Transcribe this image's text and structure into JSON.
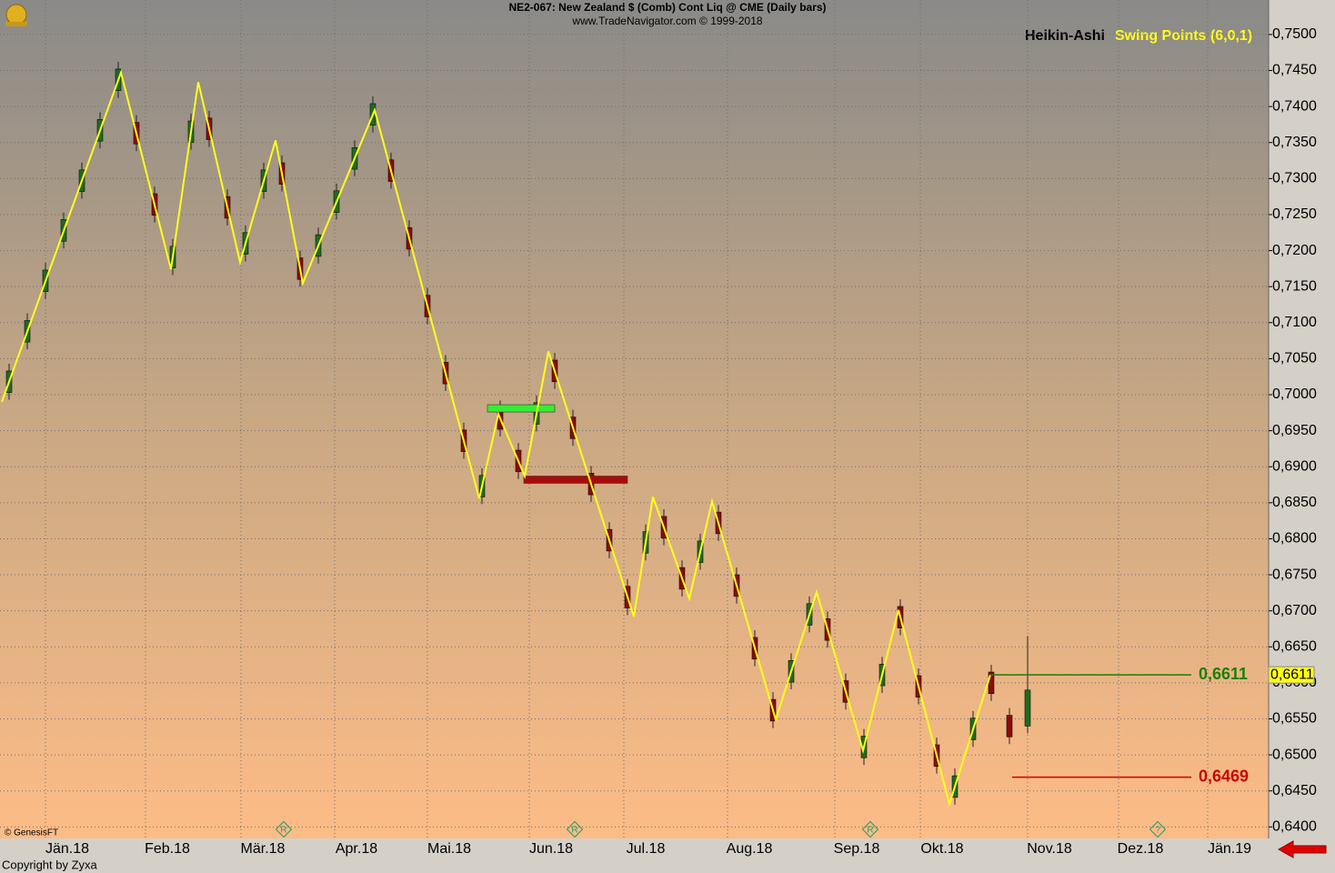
{
  "chart_data": {
    "type": "candlestick",
    "title": "NE2-067:  New Zealand $ (Comb) Cont Liq @ CME  (Daily bars)",
    "subtitle": "www.TradeNavigator.com © 1999-2018",
    "study_label": "Heikin-Ashi",
    "swing_label": "Swing Points (6,0,1)",
    "source_note": "© GenesisFT",
    "copyright": "Copyright by Zyxa",
    "up_color": "#1e6b1e",
    "down_color": "#8b0a0a",
    "swing_color": "#ffff1a",
    "grid": true,
    "xlim": [
      0,
      279
    ],
    "ylim": [
      0.6384,
      0.751
    ],
    "xticks": [
      {
        "value": 10,
        "label": "Jän.18"
      },
      {
        "value": 32,
        "label": "Feb.18"
      },
      {
        "value": 53,
        "label": "Mär.18"
      },
      {
        "value": 73.6,
        "label": "Apr.18"
      },
      {
        "value": 94,
        "label": "Mai.18"
      },
      {
        "value": 116.4,
        "label": "Jun.18"
      },
      {
        "value": 137.2,
        "label": "Jul.18"
      },
      {
        "value": 160,
        "label": "Aug.18"
      },
      {
        "value": 183.6,
        "label": "Sep.18"
      },
      {
        "value": 202.4,
        "label": "Okt.18"
      },
      {
        "value": 226,
        "label": "Nov.18"
      },
      {
        "value": 246,
        "label": "Dez.18"
      },
      {
        "value": 265.6,
        "label": "Jän.19"
      }
    ],
    "yticks": [
      {
        "value": 0.64,
        "label": "0,6400"
      },
      {
        "value": 0.645,
        "label": "0,6450"
      },
      {
        "value": 0.65,
        "label": "0,6500"
      },
      {
        "value": 0.655,
        "label": "0,6550"
      },
      {
        "value": 0.66,
        "label": "0,6600"
      },
      {
        "value": 0.665,
        "label": "0,6650"
      },
      {
        "value": 0.67,
        "label": "0,6700"
      },
      {
        "value": 0.675,
        "label": "0,6750"
      },
      {
        "value": 0.68,
        "label": "0,6800"
      },
      {
        "value": 0.685,
        "label": "0,6850"
      },
      {
        "value": 0.69,
        "label": "0,6900"
      },
      {
        "value": 0.695,
        "label": "0,6950"
      },
      {
        "value": 0.7,
        "label": "0,7000"
      },
      {
        "value": 0.705,
        "label": "0,7050"
      },
      {
        "value": 0.71,
        "label": "0,7100"
      },
      {
        "value": 0.715,
        "label": "0,7150"
      },
      {
        "value": 0.72,
        "label": "0,7200"
      },
      {
        "value": 0.725,
        "label": "0,7250"
      },
      {
        "value": 0.73,
        "label": "0,7300"
      },
      {
        "value": 0.735,
        "label": "0,7350"
      },
      {
        "value": 0.74,
        "label": "0,7400"
      },
      {
        "value": 0.745,
        "label": "0,7450"
      },
      {
        "value": 0.75,
        "label": "0,7500"
      }
    ],
    "candles": {
      "x": [
        2,
        6,
        10,
        14,
        18,
        22,
        26,
        30,
        34,
        38,
        42,
        46,
        50,
        54,
        58,
        62,
        66,
        70,
        74,
        78,
        82,
        86,
        90,
        94,
        98,
        102,
        106,
        110,
        114,
        118,
        122,
        126,
        130,
        134,
        138,
        142,
        146,
        150,
        154,
        158,
        162,
        166,
        170,
        174,
        178,
        182,
        186,
        190,
        194,
        198,
        202,
        206,
        210,
        214,
        218,
        222,
        226
      ],
      "open": [
        0.7003,
        0.7073,
        0.7143,
        0.7213,
        0.7282,
        0.7352,
        0.7422,
        0.7378,
        0.7279,
        0.7176,
        0.735,
        0.7384,
        0.7275,
        0.7195,
        0.7282,
        0.7322,
        0.719,
        0.7192,
        0.7253,
        0.7313,
        0.7374,
        0.7326,
        0.7232,
        0.7138,
        0.7045,
        0.6951,
        0.6858,
        0.6982,
        0.6923,
        0.6959,
        0.7048,
        0.6969,
        0.6891,
        0.6813,
        0.6734,
        0.678,
        0.6831,
        0.676,
        0.6767,
        0.6837,
        0.675,
        0.6663,
        0.6577,
        0.6601,
        0.668,
        0.6689,
        0.6603,
        0.6496,
        0.6596,
        0.6706,
        0.661,
        0.6514,
        0.6441,
        0.6521,
        0.6615,
        0.6555,
        0.654
      ],
      "high": [
        0.7043,
        0.7113,
        0.7183,
        0.7253,
        0.7322,
        0.7392,
        0.7462,
        0.7388,
        0.7289,
        0.7216,
        0.739,
        0.7394,
        0.7285,
        0.7235,
        0.7322,
        0.7332,
        0.72,
        0.7232,
        0.7293,
        0.7353,
        0.7414,
        0.7336,
        0.7242,
        0.7148,
        0.7055,
        0.6961,
        0.6898,
        0.6992,
        0.6933,
        0.6999,
        0.7058,
        0.6979,
        0.6901,
        0.6823,
        0.6744,
        0.682,
        0.6841,
        0.677,
        0.6807,
        0.6847,
        0.676,
        0.6673,
        0.6587,
        0.6641,
        0.672,
        0.6699,
        0.6613,
        0.6536,
        0.6636,
        0.6716,
        0.662,
        0.6524,
        0.6481,
        0.6561,
        0.6625,
        0.6565,
        0.6665
      ],
      "low": [
        0.6993,
        0.7063,
        0.7133,
        0.7203,
        0.7272,
        0.7342,
        0.7412,
        0.7338,
        0.7239,
        0.7166,
        0.734,
        0.7344,
        0.7235,
        0.7185,
        0.7272,
        0.7282,
        0.715,
        0.7182,
        0.7243,
        0.7303,
        0.7364,
        0.7286,
        0.7192,
        0.7098,
        0.7005,
        0.6911,
        0.6848,
        0.6942,
        0.6883,
        0.6949,
        0.7008,
        0.6929,
        0.6851,
        0.6773,
        0.6694,
        0.677,
        0.6791,
        0.672,
        0.6757,
        0.6797,
        0.671,
        0.6623,
        0.6537,
        0.6591,
        0.667,
        0.6649,
        0.6563,
        0.6486,
        0.6586,
        0.6666,
        0.657,
        0.6474,
        0.6431,
        0.6511,
        0.6575,
        0.6515,
        0.653
      ],
      "close": [
        0.7033,
        0.7103,
        0.7173,
        0.7243,
        0.7312,
        0.7382,
        0.7452,
        0.7348,
        0.7249,
        0.7206,
        0.738,
        0.7354,
        0.7245,
        0.7225,
        0.7312,
        0.7292,
        0.716,
        0.7222,
        0.7283,
        0.7343,
        0.7404,
        0.7296,
        0.7202,
        0.7108,
        0.7015,
        0.6921,
        0.6888,
        0.6952,
        0.6893,
        0.6989,
        0.7018,
        0.6939,
        0.6861,
        0.6783,
        0.6704,
        0.681,
        0.6801,
        0.673,
        0.6797,
        0.6807,
        0.672,
        0.6633,
        0.6547,
        0.6631,
        0.671,
        0.6659,
        0.6573,
        0.6526,
        0.6626,
        0.6676,
        0.658,
        0.6484,
        0.6471,
        0.6551,
        0.6585,
        0.6525,
        0.659
      ]
    },
    "swing_line": {
      "x": [
        0.4,
        26.6,
        37.6,
        43.6,
        52.8,
        60.6,
        66.6,
        82.4,
        105.4,
        109.6,
        115.4,
        120.6,
        139.4,
        143.6,
        151.6,
        156.6,
        170.6,
        179.6,
        189.8,
        197.6,
        208.8,
        217.8
      ],
      "values": [
        0.699,
        0.7447,
        0.7174,
        0.7434,
        0.7184,
        0.7353,
        0.7155,
        0.7395,
        0.6856,
        0.6973,
        0.6887,
        0.706,
        0.6692,
        0.6858,
        0.6717,
        0.6852,
        0.6549,
        0.6726,
        0.6506,
        0.6701,
        0.6432,
        0.6611
      ]
    },
    "zones": [
      {
        "color": "#33ee33",
        "value": 0.6981,
        "x": [
          107.2,
          122
        ]
      },
      {
        "color": "#aa0a0a",
        "value": 0.6882,
        "x": [
          115.2,
          138
        ]
      }
    ],
    "levels": [
      {
        "color": "#1a8000",
        "value": 0.6611,
        "label": "0,6611",
        "x": [
          217.8,
          262
        ]
      },
      {
        "color": "#cc0000",
        "value": 0.6469,
        "label": "0,6469",
        "x": [
          222.6,
          262
        ]
      }
    ],
    "last_price": {
      "value": 0.6611,
      "label": "0,6611"
    },
    "event_markers": [
      {
        "x": 62.4,
        "label": "R"
      },
      {
        "x": 126.4,
        "label": "R"
      },
      {
        "x": 191.4,
        "label": "R"
      },
      {
        "x": 254.6,
        "label": "?"
      }
    ]
  }
}
